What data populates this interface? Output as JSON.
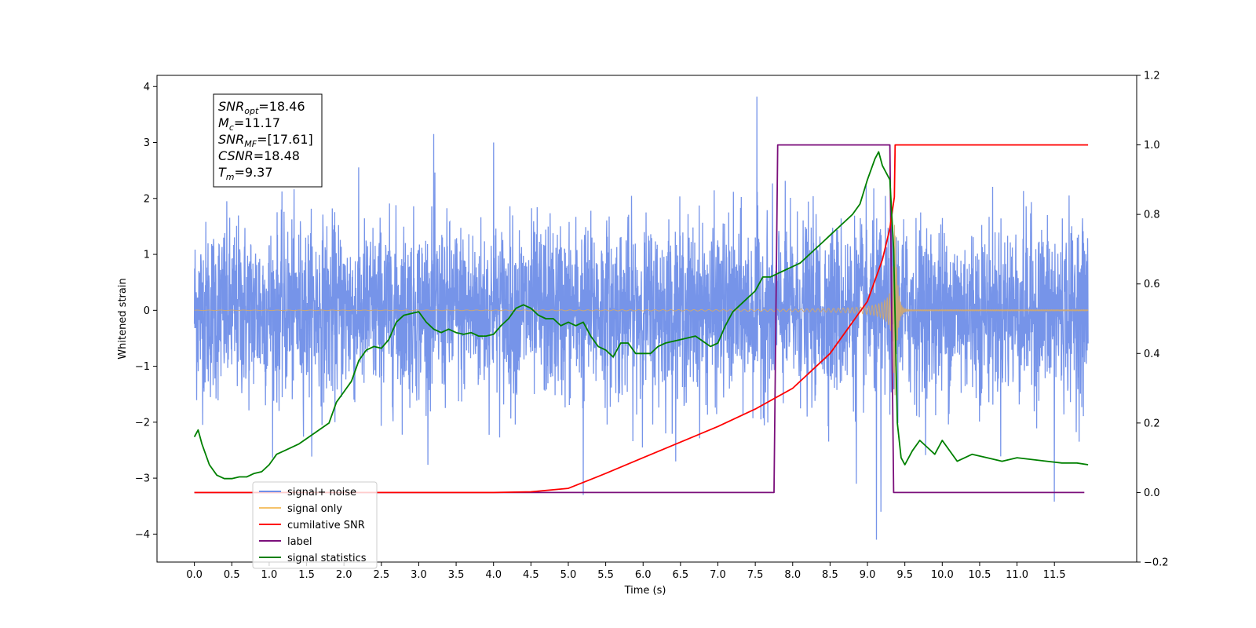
{
  "chart_data": {
    "type": "line",
    "xlabel": "Time (s)",
    "ylabel": "Whitened strain",
    "xlim": [
      -0.5,
      12.6
    ],
    "ylim": [
      -4.5,
      4.2
    ],
    "y2lim": [
      -0.2,
      1.2
    ],
    "x_ticks": [
      "0.0",
      "0.5",
      "1.0",
      "1.5",
      "2.0",
      "2.5",
      "3.0",
      "3.5",
      "4.0",
      "4.5",
      "5.0",
      "5.5",
      "6.0",
      "6.5",
      "7.0",
      "7.5",
      "8.0",
      "8.5",
      "9.0",
      "9.5",
      "10.0",
      "10.5",
      "11.0",
      "11.5"
    ],
    "y_ticks": [
      "4",
      "3",
      "2",
      "1",
      "0",
      "−1",
      "−2",
      "−3",
      "−4"
    ],
    "y2_ticks": [
      "1.2",
      "1.0",
      "0.8",
      "0.6",
      "0.4",
      "0.2",
      "0.0",
      "−0.2"
    ],
    "annotation": {
      "lines": [
        {
          "sym": "SNR",
          "sub": "opt",
          "value": "=18.46"
        },
        {
          "sym": "M",
          "sub": "c",
          "value": "=11.17"
        },
        {
          "sym": "SNR",
          "sub": "MF",
          "value": "=[17.61]"
        },
        {
          "sym": "CSNR",
          "sub": "",
          "value": "=18.48"
        },
        {
          "sym": "T",
          "sub": "m",
          "value": "=9.37"
        }
      ]
    },
    "legend": {
      "position": "lower-left",
      "entries": [
        {
          "label": "signal+ noise",
          "color": "#6f8ee8"
        },
        {
          "label": "signal only",
          "color": "#f5c26b"
        },
        {
          "label": "cumilative SNR",
          "color": "#ff0000"
        },
        {
          "label": "label",
          "color": "#7b0f7b"
        },
        {
          "label": "signal statistics",
          "color": "#008000"
        }
      ]
    },
    "series": [
      {
        "name": "signal+ noise",
        "axis": "left",
        "color": "#6f8ee8",
        "kind": "noise",
        "t_range": [
          0,
          11.95
        ],
        "envelope": 1.6,
        "peaks": [
          [
            3.2,
            3.15
          ],
          [
            4.0,
            3.0
          ],
          [
            7.52,
            3.82
          ],
          [
            9.12,
            -4.1
          ],
          [
            9.18,
            -3.6
          ],
          [
            11.5,
            -3.42
          ],
          [
            5.2,
            -3.3
          ],
          [
            8.85,
            -3.1
          ]
        ]
      },
      {
        "name": "signal only",
        "axis": "left",
        "color": "#d4a96b",
        "kind": "chirp",
        "t_merge": 9.37,
        "t_range": [
          0,
          11.95
        ]
      },
      {
        "name": "cumilative SNR",
        "axis": "right",
        "color": "#ff0000",
        "x": [
          0,
          4.0,
          4.5,
          5.0,
          5.5,
          6.0,
          6.5,
          7.0,
          7.5,
          8.0,
          8.5,
          9.0,
          9.2,
          9.3,
          9.36,
          9.37,
          11.95
        ],
        "y": [
          0,
          0,
          0.002,
          0.012,
          0.055,
          0.1,
          0.145,
          0.19,
          0.24,
          0.3,
          0.4,
          0.55,
          0.67,
          0.76,
          0.85,
          1.0,
          1.0
        ]
      },
      {
        "name": "label",
        "axis": "right",
        "color": "#7b0f7b",
        "x": [
          0,
          7.75,
          7.8,
          9.3,
          9.35,
          11.9
        ],
        "y": [
          0,
          0,
          1,
          1,
          0,
          0
        ]
      },
      {
        "name": "signal statistics",
        "axis": "right",
        "color": "#008000",
        "x": [
          0,
          0.05,
          0.1,
          0.2,
          0.3,
          0.4,
          0.5,
          0.6,
          0.7,
          0.8,
          0.9,
          1.0,
          1.1,
          1.2,
          1.4,
          1.6,
          1.8,
          1.9,
          2.0,
          2.1,
          2.2,
          2.3,
          2.4,
          2.5,
          2.6,
          2.7,
          2.8,
          2.9,
          3.0,
          3.1,
          3.2,
          3.3,
          3.4,
          3.5,
          3.6,
          3.7,
          3.8,
          3.9,
          4.0,
          4.1,
          4.2,
          4.3,
          4.4,
          4.5,
          4.6,
          4.7,
          4.8,
          4.9,
          5.0,
          5.1,
          5.2,
          5.3,
          5.4,
          5.5,
          5.6,
          5.7,
          5.8,
          5.9,
          6.0,
          6.1,
          6.2,
          6.3,
          6.5,
          6.7,
          6.9,
          7.0,
          7.1,
          7.2,
          7.3,
          7.4,
          7.5,
          7.6,
          7.7,
          7.8,
          7.9,
          8.0,
          8.1,
          8.2,
          8.3,
          8.4,
          8.5,
          8.6,
          8.7,
          8.8,
          8.9,
          9.0,
          9.1,
          9.15,
          9.2,
          9.3,
          9.35,
          9.4,
          9.45,
          9.5,
          9.6,
          9.7,
          9.8,
          9.9,
          10.0,
          10.2,
          10.4,
          10.6,
          10.8,
          11.0,
          11.2,
          11.4,
          11.6,
          11.8,
          11.95
        ],
        "y": [
          0.16,
          0.18,
          0.14,
          0.08,
          0.05,
          0.04,
          0.04,
          0.045,
          0.045,
          0.055,
          0.06,
          0.08,
          0.11,
          0.12,
          0.14,
          0.17,
          0.2,
          0.26,
          0.29,
          0.32,
          0.38,
          0.41,
          0.42,
          0.415,
          0.44,
          0.49,
          0.51,
          0.515,
          0.52,
          0.49,
          0.47,
          0.46,
          0.47,
          0.46,
          0.455,
          0.46,
          0.45,
          0.45,
          0.455,
          0.48,
          0.5,
          0.53,
          0.54,
          0.53,
          0.51,
          0.5,
          0.5,
          0.48,
          0.49,
          0.48,
          0.49,
          0.45,
          0.42,
          0.41,
          0.39,
          0.43,
          0.43,
          0.4,
          0.4,
          0.4,
          0.42,
          0.43,
          0.44,
          0.45,
          0.42,
          0.43,
          0.48,
          0.52,
          0.54,
          0.56,
          0.58,
          0.62,
          0.62,
          0.63,
          0.64,
          0.65,
          0.66,
          0.68,
          0.7,
          0.72,
          0.74,
          0.76,
          0.78,
          0.8,
          0.83,
          0.9,
          0.96,
          0.98,
          0.94,
          0.9,
          0.7,
          0.2,
          0.1,
          0.08,
          0.12,
          0.15,
          0.13,
          0.11,
          0.15,
          0.09,
          0.11,
          0.1,
          0.09,
          0.1,
          0.095,
          0.09,
          0.085,
          0.085,
          0.08
        ]
      }
    ]
  }
}
